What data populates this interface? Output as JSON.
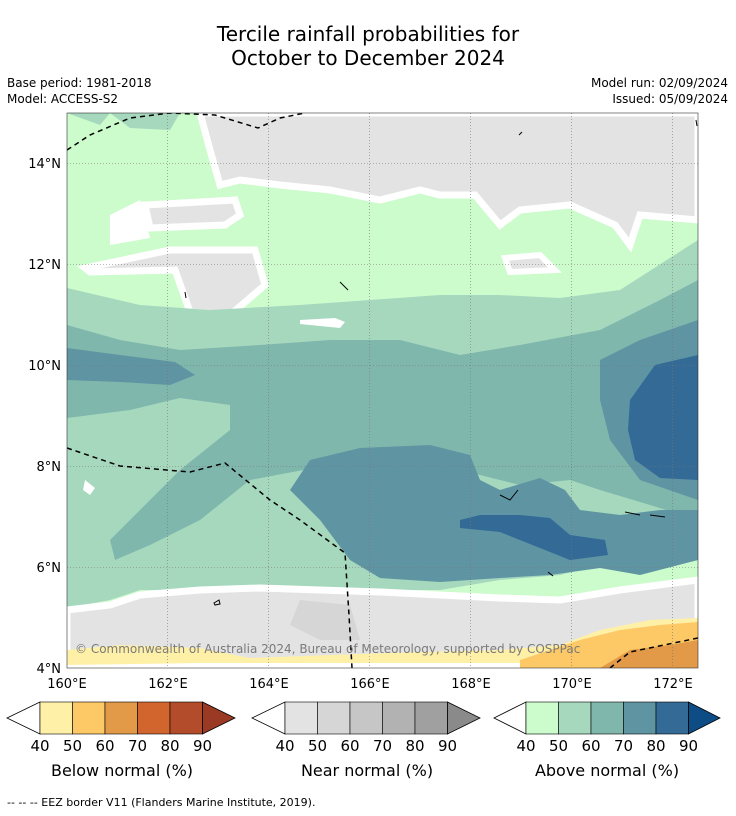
{
  "title_line1": "Tercile rainfall probabilities for",
  "title_line2": "October to December 2024",
  "meta": {
    "base_period": "Base period: 1981-2018",
    "model": "Model: ACCESS-S2",
    "model_run": "Model run: 02/09/2024",
    "issued": "Issued: 05/09/2024"
  },
  "map": {
    "lat_labels": [
      "14°N",
      "12°N",
      "10°N",
      "8°N",
      "6°N",
      "4°N"
    ],
    "lon_labels": [
      "160°E",
      "162°E",
      "164°E",
      "166°E",
      "168°E",
      "170°E",
      "172°E"
    ],
    "copyright": "© Commonwealth of Australia 2024, Bureau of Meteorology, supported by COSPPac"
  },
  "colorbars": [
    {
      "name": "Below normal (%)",
      "ticks": [
        "40",
        "50",
        "60",
        "70",
        "80",
        "90"
      ],
      "colors": [
        "#fff0a8",
        "#fdc967",
        "#e39a48",
        "#d2652e",
        "#b34c2b",
        "#9a3a24"
      ]
    },
    {
      "name": "Near normal (%)",
      "ticks": [
        "40",
        "50",
        "60",
        "70",
        "80",
        "90"
      ],
      "colors": [
        "#e3e3e3",
        "#d6d6d6",
        "#c6c6c6",
        "#b2b2b2",
        "#a0a0a0",
        "#8a8a8a"
      ]
    },
    {
      "name": "Above normal (%)",
      "ticks": [
        "40",
        "50",
        "60",
        "70",
        "80",
        "90"
      ],
      "colors": [
        "#ccfbcc",
        "#a6d8be",
        "#80b7ac",
        "#5f94a3",
        "#336a96",
        "#0e4c86"
      ]
    }
  ],
  "footer": "--  --  -- EEZ border V11 (Flanders Marine Institute, 2019)."
}
